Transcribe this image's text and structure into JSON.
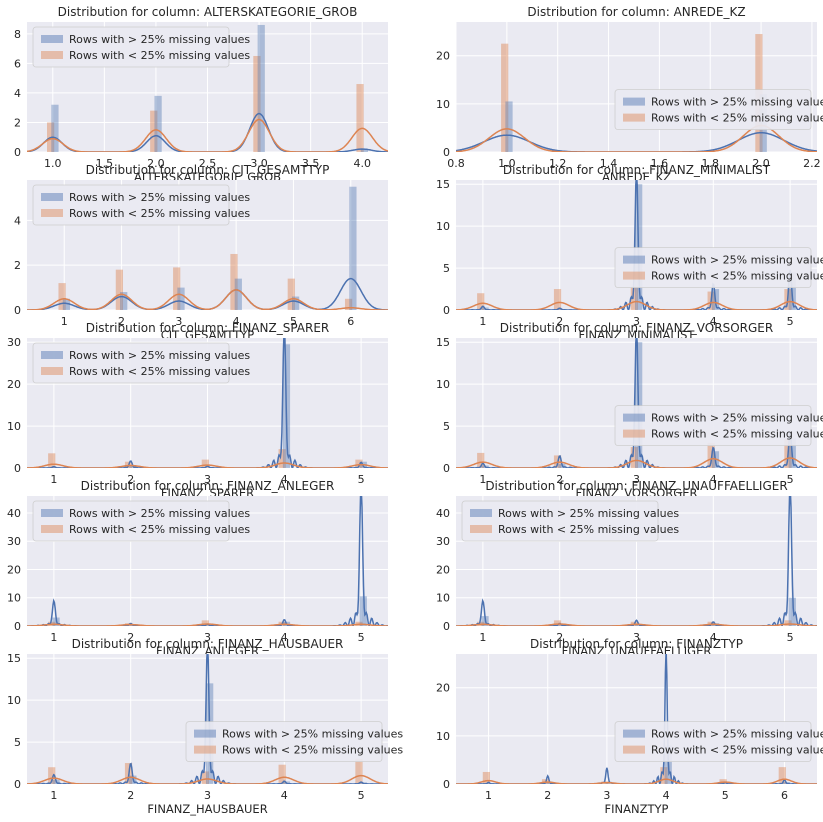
{
  "legend": {
    "gt": "Rows with > 25% missing values",
    "lt": "Rows with < 25% missing values"
  },
  "colors": {
    "gt": "#4c72b0",
    "lt": "#dd8452",
    "bg": "#eaeaf2"
  },
  "chart_data": [
    {
      "type": "bar",
      "title": "Distribution for column: ALTERSKATEGORIE_GROB",
      "xlabel": "ALTERSKATEGORIE_GROB",
      "xlim": [
        0.75,
        4.25
      ],
      "ylim": [
        0,
        8.8
      ],
      "xticks": [
        "1.0",
        "1.5",
        "2.0",
        "2.5",
        "3.0",
        "3.5",
        "4.0"
      ],
      "xtick_values": [
        1.0,
        1.5,
        2.0,
        2.5,
        3.0,
        3.5,
        4.0
      ],
      "yticks": [
        0,
        2,
        4,
        6,
        8
      ],
      "legend_position": "upper-left",
      "series": [
        {
          "name": "Rows with > 25% missing values",
          "x": [
            1,
            2,
            3,
            4
          ],
          "values": [
            3.2,
            3.8,
            8.6,
            0.2
          ],
          "kde_peak": [
            1.0,
            1.1,
            2.6,
            0.2
          ],
          "kde_width": 0.09
        },
        {
          "name": "Rows with < 25% missing values",
          "x": [
            1,
            2,
            3,
            4
          ],
          "values": [
            2.0,
            2.8,
            6.5,
            4.6
          ],
          "kde_peak": [
            0.9,
            1.5,
            2.2,
            1.6
          ],
          "kde_width": 0.1
        }
      ]
    },
    {
      "type": "bar",
      "title": "Distribution for column: ANREDE_KZ",
      "xlabel": "ANREDE_KZ",
      "xlim": [
        0.8,
        2.22
      ],
      "ylim": [
        0,
        27
      ],
      "xticks": [
        "0.8",
        "1.0",
        "1.2",
        "1.4",
        "1.6",
        "1.8",
        "2.0",
        "2.2"
      ],
      "xtick_values": [
        0.8,
        1.0,
        1.2,
        1.4,
        1.6,
        1.8,
        2.0,
        2.2
      ],
      "yticks": [
        0,
        10,
        20
      ],
      "legend_position": "center-right",
      "series": [
        {
          "name": "Rows with > 25% missing values",
          "x": [
            1,
            2
          ],
          "values": [
            10.5,
            12.0
          ],
          "kde_peak": [
            3.5,
            4.0
          ],
          "kde_width": 0.09
        },
        {
          "name": "Rows with < 25% missing values",
          "x": [
            1,
            2
          ],
          "values": [
            22.5,
            24.5
          ],
          "kde_peak": [
            4.8,
            5.5
          ],
          "kde_width": 0.07
        }
      ]
    },
    {
      "type": "bar",
      "title": "Distribution for column: CJT_GESAMTTYP",
      "xlabel": "CJT_GESAMTTYP",
      "xlim": [
        0.35,
        6.65
      ],
      "ylim": [
        0,
        5.8
      ],
      "xticks": [
        "1",
        "2",
        "3",
        "4",
        "5",
        "6"
      ],
      "xtick_values": [
        1,
        2,
        3,
        4,
        5,
        6
      ],
      "yticks": [
        0,
        2,
        4
      ],
      "legend_position": "upper-left",
      "series": [
        {
          "name": "Rows with > 25% missing values",
          "x": [
            1,
            2,
            3,
            4,
            5,
            6
          ],
          "values": [
            0.5,
            0.8,
            1.0,
            1.4,
            0.6,
            5.5
          ],
          "kde_peak": [
            0.3,
            0.6,
            0.4,
            0.9,
            0.4,
            1.4
          ],
          "kde_width": 0.18
        },
        {
          "name": "Rows with < 25% missing values",
          "x": [
            1,
            2,
            3,
            4,
            5,
            6
          ],
          "values": [
            1.2,
            1.8,
            1.9,
            2.5,
            1.4,
            0.5
          ],
          "kde_peak": [
            0.5,
            0.7,
            0.7,
            0.9,
            0.5,
            0.1
          ],
          "kde_width": 0.18
        }
      ]
    },
    {
      "type": "bar",
      "title": "Distribution for column: FINANZ_MINIMALIST",
      "xlabel": "FINANZ_MINIMALIST",
      "xlim": [
        0.65,
        5.35
      ],
      "ylim": [
        0,
        15.5
      ],
      "xticks": [
        "1",
        "2",
        "3",
        "4",
        "5"
      ],
      "xtick_values": [
        1,
        2,
        3,
        4,
        5
      ],
      "yticks": [
        0,
        5,
        10,
        15
      ],
      "legend_position": "center-right",
      "series": [
        {
          "name": "Rows with > 25% missing values",
          "x": [
            1,
            2,
            3,
            4,
            5
          ],
          "values": [
            0.3,
            0.1,
            15.0,
            2.5,
            4.5
          ],
          "kde_peak": [
            0.4,
            0.2,
            15.0,
            2.8,
            4.3
          ],
          "kde_width": 0.02
        },
        {
          "name": "Rows with < 25% missing values",
          "x": [
            1,
            2,
            3,
            4,
            5
          ],
          "values": [
            2.0,
            2.5,
            2.8,
            2.2,
            2.5
          ],
          "kde_peak": [
            0.8,
            0.9,
            1.0,
            0.9,
            1.0
          ],
          "kde_width": 0.12
        }
      ]
    },
    {
      "type": "bar",
      "title": "Distribution for column: FINANZ_SPARER",
      "xlabel": "FINANZ_SPARER",
      "xlim": [
        0.65,
        5.35
      ],
      "ylim": [
        0,
        31
      ],
      "xticks": [
        "1",
        "2",
        "3",
        "4",
        "5"
      ],
      "xtick_values": [
        1,
        2,
        3,
        4,
        5
      ],
      "yticks": [
        0,
        10,
        20,
        30
      ],
      "legend_position": "upper-left",
      "series": [
        {
          "name": "Rows with > 25% missing values",
          "x": [
            1,
            2,
            3,
            4,
            5
          ],
          "values": [
            0.2,
            0.5,
            0.1,
            29.5,
            1.5
          ],
          "kde_peak": [
            0.3,
            1.5,
            0.4,
            30.0,
            1.2
          ],
          "kde_width": 0.02
        },
        {
          "name": "Rows with < 25% missing values",
          "x": [
            1,
            2,
            3,
            4,
            5
          ],
          "values": [
            3.5,
            1.5,
            2.0,
            4.5,
            2.0
          ],
          "kde_peak": [
            0.9,
            0.6,
            0.7,
            1.2,
            0.8
          ],
          "kde_width": 0.12
        }
      ]
    },
    {
      "type": "bar",
      "title": "Distribution for column: FINANZ_VORSORGER",
      "xlabel": "FINANZ_VORSORGER",
      "xlim": [
        0.65,
        5.35
      ],
      "ylim": [
        0,
        15.5
      ],
      "xticks": [
        "1",
        "2",
        "3",
        "4",
        "5"
      ],
      "xtick_values": [
        1,
        2,
        3,
        4,
        5
      ],
      "yticks": [
        0,
        5,
        10,
        15
      ],
      "legend_position": "center-right",
      "series": [
        {
          "name": "Rows with > 25% missing values",
          "x": [
            1,
            2,
            3,
            4,
            5
          ],
          "values": [
            0.3,
            0.5,
            15.0,
            2.0,
            3.5
          ],
          "kde_peak": [
            0.5,
            1.3,
            15.0,
            2.2,
            3.8
          ],
          "kde_width": 0.02
        },
        {
          "name": "Rows with < 25% missing values",
          "x": [
            1,
            2,
            3,
            4,
            5
          ],
          "values": [
            1.8,
            1.5,
            2.5,
            3.0,
            3.5
          ],
          "kde_peak": [
            0.7,
            0.7,
            0.9,
            1.1,
            1.2
          ],
          "kde_width": 0.12
        }
      ]
    },
    {
      "type": "bar",
      "title": "Distribution for column: FINANZ_ANLEGER",
      "xlabel": "FINANZ_ANLEGER",
      "xlim": [
        0.65,
        5.35
      ],
      "ylim": [
        0,
        46
      ],
      "xticks": [
        "1",
        "2",
        "3",
        "4",
        "5"
      ],
      "xtick_values": [
        1,
        2,
        3,
        4,
        5
      ],
      "yticks": [
        0,
        10,
        20,
        30,
        40
      ],
      "legend_position": "upper-left",
      "series": [
        {
          "name": "Rows with > 25% missing values",
          "x": [
            1,
            2,
            3,
            4,
            5
          ],
          "values": [
            3.0,
            0.3,
            0.3,
            1.5,
            10.5
          ],
          "kde_peak": [
            8.0,
            0.8,
            0.6,
            2.0,
            45.0
          ],
          "kde_width": 0.02
        },
        {
          "name": "Rows with < 25% missing values",
          "x": [
            1,
            2,
            3,
            4,
            5
          ],
          "values": [
            1.5,
            1.0,
            2.0,
            1.5,
            1.5
          ],
          "kde_peak": [
            0.6,
            0.5,
            0.7,
            0.6,
            0.6
          ],
          "kde_width": 0.12
        }
      ]
    },
    {
      "type": "bar",
      "title": "Distribution for column: FINANZ_UNAUFFAELLIGER",
      "xlabel": "FINANZ_UNAUFFAELLIGER",
      "xlim": [
        0.65,
        5.35
      ],
      "ylim": [
        0,
        46
      ],
      "xticks": [
        "1",
        "2",
        "3",
        "4",
        "5"
      ],
      "xtick_values": [
        1,
        2,
        3,
        4,
        5
      ],
      "yticks": [
        0,
        10,
        20,
        30,
        40
      ],
      "legend_position": "upper-left",
      "series": [
        {
          "name": "Rows with > 25% missing values",
          "x": [
            1,
            2,
            3,
            4,
            5
          ],
          "values": [
            3.5,
            0.5,
            0.5,
            1.0,
            10.0
          ],
          "kde_peak": [
            8.0,
            0.8,
            1.8,
            1.3,
            45.0
          ],
          "kde_width": 0.02
        },
        {
          "name": "Rows with < 25% missing values",
          "x": [
            1,
            2,
            3,
            4,
            5
          ],
          "values": [
            1.5,
            2.0,
            1.5,
            1.5,
            2.0
          ],
          "kde_peak": [
            0.6,
            0.7,
            0.6,
            0.6,
            0.7
          ],
          "kde_width": 0.12
        }
      ]
    },
    {
      "type": "bar",
      "title": "Distribution for column: FINANZ_HAUSBAUER",
      "xlabel": "FINANZ_HAUSBAUER",
      "xlim": [
        0.65,
        5.35
      ],
      "ylim": [
        0,
        15.5
      ],
      "xticks": [
        "1",
        "2",
        "3",
        "4",
        "5"
      ],
      "xtick_values": [
        1,
        2,
        3,
        4,
        5
      ],
      "yticks": [
        0,
        5,
        10,
        15
      ],
      "legend_position": "center-right",
      "series": [
        {
          "name": "Rows with > 25% missing values",
          "x": [
            1,
            2,
            3,
            4,
            5
          ],
          "values": [
            0.5,
            1.0,
            12.0,
            0.3,
            0.2
          ],
          "kde_peak": [
            1.0,
            2.2,
            15.0,
            0.3,
            0.2
          ],
          "kde_width": 0.02
        },
        {
          "name": "Rows with < 25% missing values",
          "x": [
            1,
            2,
            3,
            4,
            5
          ],
          "values": [
            2.0,
            2.5,
            1.5,
            2.3,
            3.0
          ],
          "kde_peak": [
            0.7,
            0.8,
            0.6,
            0.8,
            1.0
          ],
          "kde_width": 0.12
        }
      ]
    },
    {
      "type": "bar",
      "title": "Distribution for column: FINANZTYP",
      "xlabel": "FINANZTYP",
      "xlim": [
        0.45,
        6.55
      ],
      "ylim": [
        0,
        27
      ],
      "xticks": [
        "1",
        "2",
        "3",
        "4",
        "5",
        "6"
      ],
      "xtick_values": [
        1,
        2,
        3,
        4,
        5,
        6
      ],
      "yticks": [
        0,
        10,
        20
      ],
      "legend_position": "center-right",
      "series": [
        {
          "name": "Rows with > 25% missing values",
          "x": [
            1,
            2,
            3,
            4,
            5,
            6
          ],
          "values": [
            0.2,
            0.3,
            0.3,
            8.0,
            0.1,
            0.4
          ],
          "kde_peak": [
            0.3,
            1.5,
            3.0,
            25.0,
            0.3,
            0.8
          ],
          "kde_width": 0.02
        },
        {
          "name": "Rows with < 25% missing values",
          "x": [
            1,
            2,
            3,
            4,
            5,
            6
          ],
          "values": [
            2.5,
            1.0,
            0.5,
            3.5,
            1.0,
            3.5
          ],
          "kde_peak": [
            0.7,
            0.4,
            0.3,
            1.0,
            0.4,
            1.0
          ],
          "kde_width": 0.12
        }
      ]
    }
  ]
}
